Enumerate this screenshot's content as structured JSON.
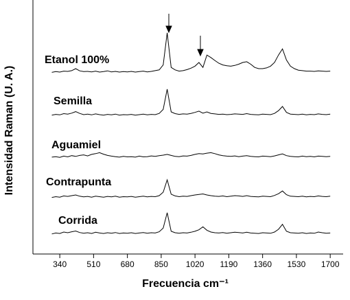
{
  "chart_data": {
    "type": "line",
    "xlabel": "Frecuencia cm⁻¹",
    "ylabel": "Intensidad Raman (U. A.)",
    "x": [
      300,
      320,
      340,
      360,
      380,
      400,
      420,
      440,
      460,
      480,
      500,
      520,
      540,
      560,
      580,
      600,
      620,
      640,
      660,
      680,
      700,
      720,
      740,
      760,
      780,
      800,
      820,
      840,
      860,
      880,
      900,
      920,
      940,
      960,
      980,
      1000,
      1020,
      1040,
      1060,
      1080,
      1100,
      1120,
      1140,
      1160,
      1180,
      1200,
      1220,
      1240,
      1260,
      1280,
      1300,
      1320,
      1340,
      1360,
      1380,
      1400,
      1420,
      1440,
      1460,
      1480,
      1500,
      1520,
      1540,
      1560,
      1580,
      1600,
      1620,
      1640,
      1660,
      1680,
      1700
    ],
    "series": [
      {
        "name": "Etanol 100%",
        "color": "#000000",
        "values": [
          73.5,
          73.8,
          73.6,
          74.0,
          73.9,
          74.2,
          75.0,
          74.1,
          73.8,
          73.9,
          73.7,
          74.0,
          73.6,
          73.8,
          74.1,
          73.7,
          73.9,
          73.6,
          73.8,
          73.7,
          73.9,
          73.6,
          73.8,
          74.0,
          73.7,
          73.9,
          74.2,
          74.5,
          76.5,
          89.5,
          75.5,
          74.5,
          74.0,
          74.2,
          74.6,
          75.2,
          76.0,
          77.5,
          75.5,
          80.5,
          79.5,
          78.3,
          77.2,
          76.5,
          76.2,
          76.0,
          76.3,
          76.8,
          77.5,
          77.8,
          76.8,
          75.5,
          75.0,
          75.0,
          75.3,
          76.0,
          77.5,
          80.5,
          83.0,
          78.5,
          76.0,
          75.0,
          74.4,
          74.2,
          74.0,
          74.0,
          73.9,
          74.1,
          74.0,
          73.9,
          74.0
        ]
      },
      {
        "name": "Semilla",
        "color": "#000000",
        "values": [
          56.2,
          56.5,
          56.3,
          56.8,
          56.6,
          57.0,
          57.6,
          56.9,
          56.4,
          56.6,
          56.3,
          56.7,
          56.4,
          56.2,
          56.5,
          56.3,
          56.6,
          56.2,
          56.4,
          56.3,
          56.5,
          56.2,
          56.4,
          56.6,
          56.3,
          56.5,
          56.4,
          56.9,
          58.5,
          66.7,
          57.5,
          56.8,
          56.5,
          56.7,
          56.6,
          56.9,
          57.3,
          57.8,
          57.0,
          57.5,
          56.9,
          56.7,
          56.5,
          56.6,
          56.4,
          56.5,
          56.7,
          56.6,
          56.5,
          56.8,
          56.5,
          56.4,
          56.3,
          56.6,
          56.5,
          56.4,
          56.9,
          58.0,
          59.7,
          57.3,
          56.6,
          56.5,
          56.4,
          56.6,
          56.3,
          56.5,
          56.4,
          56.7,
          56.5,
          56.4,
          56.6
        ]
      },
      {
        "name": "Aguamiel",
        "color": "#000000",
        "values": [
          39.2,
          39.4,
          39.1,
          39.6,
          39.3,
          39.8,
          39.5,
          39.9,
          40.1,
          39.7,
          40.3,
          40.6,
          41.0,
          40.4,
          39.9,
          39.6,
          39.4,
          39.2,
          39.5,
          39.3,
          39.4,
          39.2,
          39.6,
          39.3,
          39.4,
          39.7,
          39.5,
          39.8,
          40.0,
          40.3,
          39.9,
          39.5,
          39.4,
          39.7,
          39.6,
          39.9,
          40.3,
          40.6,
          40.5,
          40.8,
          41.0,
          40.6,
          40.1,
          39.8,
          39.6,
          39.5,
          39.7,
          39.4,
          39.6,
          39.8,
          39.5,
          39.4,
          39.3,
          39.6,
          39.5,
          39.4,
          39.7,
          40.1,
          40.5,
          39.8,
          39.5,
          39.4,
          39.3,
          39.6,
          39.4,
          39.5,
          39.3,
          39.6,
          39.5,
          39.4,
          39.5
        ]
      },
      {
        "name": "Contrapunta",
        "color": "#000000",
        "values": [
          22.9,
          23.2,
          23.0,
          23.5,
          23.3,
          23.6,
          23.9,
          23.4,
          23.1,
          23.3,
          23.0,
          23.4,
          23.2,
          23.0,
          23.3,
          23.1,
          23.4,
          23.0,
          23.2,
          23.1,
          23.3,
          23.0,
          23.2,
          23.4,
          23.1,
          23.3,
          23.2,
          23.6,
          25.0,
          30.0,
          24.2,
          23.5,
          23.2,
          23.4,
          23.3,
          23.6,
          23.9,
          24.1,
          24.3,
          23.9,
          23.6,
          23.4,
          23.3,
          23.5,
          23.2,
          23.4,
          23.6,
          23.5,
          23.3,
          23.6,
          23.3,
          23.2,
          23.1,
          23.4,
          23.3,
          23.2,
          23.7,
          24.4,
          25.5,
          24.0,
          23.4,
          23.3,
          23.2,
          23.4,
          23.1,
          23.3,
          23.2,
          23.5,
          23.3,
          23.2,
          23.4
        ]
      },
      {
        "name": "Corrida",
        "color": "#000000",
        "values": [
          8.1,
          8.5,
          8.3,
          8.9,
          8.6,
          9.0,
          9.3,
          8.7,
          8.4,
          8.6,
          8.3,
          8.8,
          8.5,
          8.3,
          8.6,
          8.4,
          8.7,
          8.3,
          8.5,
          8.4,
          8.6,
          8.3,
          8.5,
          8.7,
          8.4,
          8.6,
          8.5,
          9.0,
          10.5,
          16.7,
          9.2,
          8.6,
          8.4,
          8.6,
          8.5,
          8.8,
          9.2,
          9.8,
          11.0,
          9.6,
          8.9,
          8.6,
          8.5,
          8.7,
          8.4,
          8.6,
          8.8,
          8.7,
          8.5,
          8.8,
          8.5,
          8.4,
          8.3,
          8.6,
          8.5,
          8.4,
          8.9,
          10.0,
          12.0,
          9.2,
          8.6,
          8.5,
          8.4,
          8.6,
          8.3,
          8.5,
          8.4,
          8.9,
          8.6,
          8.4,
          8.5
        ]
      }
    ],
    "xlim": [
      205,
      1765
    ],
    "xticks": [
      340,
      510,
      680,
      850,
      1020,
      1190,
      1360,
      1530,
      1700
    ],
    "ylim": [
      0,
      100
    ]
  }
}
